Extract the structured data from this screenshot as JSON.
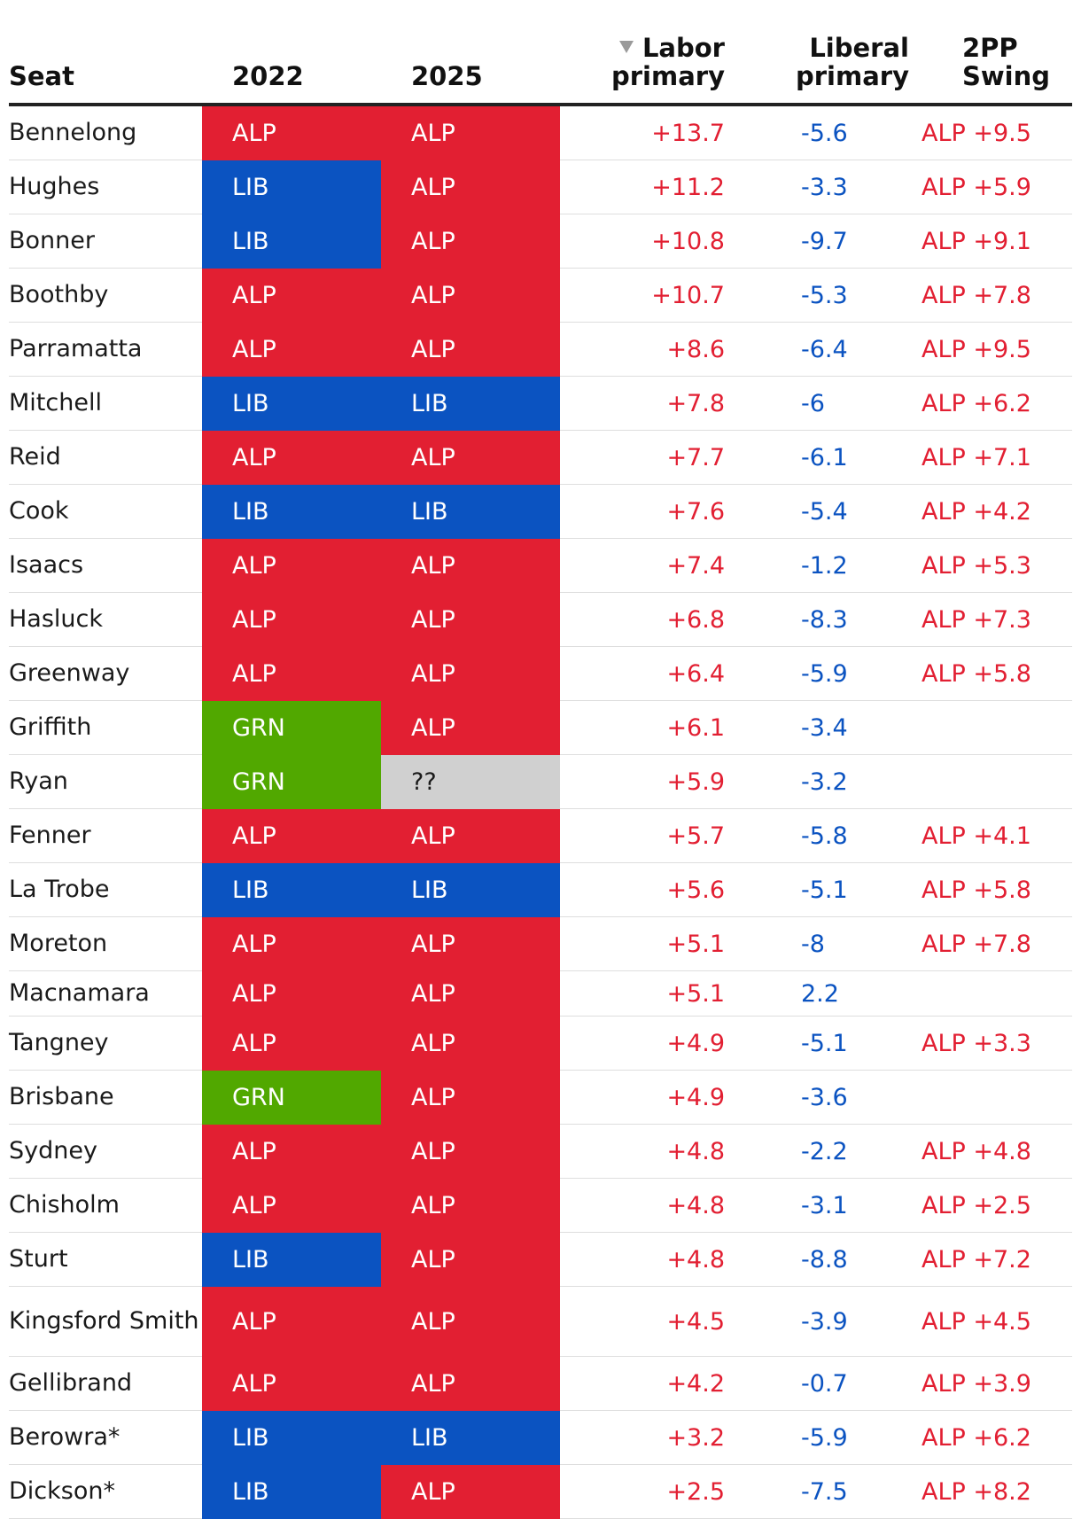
{
  "table": {
    "headers": {
      "seat": "Seat",
      "y2022": "2022",
      "y2025": "2025",
      "labor_line1": "Labor",
      "labor_line2": "primary",
      "liberal_line1": "Liberal",
      "liberal_line2": "primary",
      "swing_line1": "2PP",
      "swing_line2": "Swing"
    },
    "sorted_column": "Labor primary",
    "sort_direction": "descending",
    "colors": {
      "ALP": "#e21f32",
      "LIB": "#0b53c1",
      "GRN": "#51a800",
      "unknown": "#d0d0d0",
      "labor_text": "#e21f32",
      "liberal_text": "#0b53c1"
    },
    "rows": [
      {
        "seat": "Bennelong",
        "y2022": "ALP",
        "y2025": "ALP",
        "labor": "+13.7",
        "liberal": "-5.6",
        "swing": "ALP +9.5"
      },
      {
        "seat": "Hughes",
        "y2022": "LIB",
        "y2025": "ALP",
        "labor": "+11.2",
        "liberal": "-3.3",
        "swing": "ALP +5.9"
      },
      {
        "seat": "Bonner",
        "y2022": "LIB",
        "y2025": "ALP",
        "labor": "+10.8",
        "liberal": "-9.7",
        "swing": "ALP +9.1"
      },
      {
        "seat": "Boothby",
        "y2022": "ALP",
        "y2025": "ALP",
        "labor": "+10.7",
        "liberal": "-5.3",
        "swing": "ALP +7.8"
      },
      {
        "seat": "Parramatta",
        "y2022": "ALP",
        "y2025": "ALP",
        "labor": "+8.6",
        "liberal": "-6.4",
        "swing": "ALP +9.5"
      },
      {
        "seat": "Mitchell",
        "y2022": "LIB",
        "y2025": "LIB",
        "labor": "+7.8",
        "liberal": "-6",
        "swing": "ALP +6.2"
      },
      {
        "seat": "Reid",
        "y2022": "ALP",
        "y2025": "ALP",
        "labor": "+7.7",
        "liberal": "-6.1",
        "swing": "ALP +7.1"
      },
      {
        "seat": "Cook",
        "y2022": "LIB",
        "y2025": "LIB",
        "labor": "+7.6",
        "liberal": "-5.4",
        "swing": "ALP +4.2"
      },
      {
        "seat": "Isaacs",
        "y2022": "ALP",
        "y2025": "ALP",
        "labor": "+7.4",
        "liberal": "-1.2",
        "swing": "ALP +5.3"
      },
      {
        "seat": "Hasluck",
        "y2022": "ALP",
        "y2025": "ALP",
        "labor": "+6.8",
        "liberal": "-8.3",
        "swing": "ALP +7.3"
      },
      {
        "seat": "Greenway",
        "y2022": "ALP",
        "y2025": "ALP",
        "labor": "+6.4",
        "liberal": "-5.9",
        "swing": "ALP +5.8"
      },
      {
        "seat": "Griffith",
        "y2022": "GRN",
        "y2025": "ALP",
        "labor": "+6.1",
        "liberal": "-3.4",
        "swing": ""
      },
      {
        "seat": "Ryan",
        "y2022": "GRN",
        "y2025": "??",
        "labor": "+5.9",
        "liberal": "-3.2",
        "swing": ""
      },
      {
        "seat": "Fenner",
        "y2022": "ALP",
        "y2025": "ALP",
        "labor": "+5.7",
        "liberal": "-5.8",
        "swing": "ALP +4.1"
      },
      {
        "seat": "La Trobe",
        "y2022": "LIB",
        "y2025": "LIB",
        "labor": "+5.6",
        "liberal": "-5.1",
        "swing": "ALP +5.8"
      },
      {
        "seat": "Moreton",
        "y2022": "ALP",
        "y2025": "ALP",
        "labor": "+5.1",
        "liberal": "-8",
        "swing": "ALP +7.8"
      },
      {
        "seat": "Macnamara",
        "y2022": "ALP",
        "y2025": "ALP",
        "labor": "+5.1",
        "liberal": "2.2",
        "swing": ""
      },
      {
        "seat": "Tangney",
        "y2022": "ALP",
        "y2025": "ALP",
        "labor": "+4.9",
        "liberal": "-5.1",
        "swing": "ALP +3.3"
      },
      {
        "seat": "Brisbane",
        "y2022": "GRN",
        "y2025": "ALP",
        "labor": "+4.9",
        "liberal": "-3.6",
        "swing": ""
      },
      {
        "seat": "Sydney",
        "y2022": "ALP",
        "y2025": "ALP",
        "labor": "+4.8",
        "liberal": "-2.2",
        "swing": "ALP +4.8"
      },
      {
        "seat": "Chisholm",
        "y2022": "ALP",
        "y2025": "ALP",
        "labor": "+4.8",
        "liberal": "-3.1",
        "swing": "ALP +2.5"
      },
      {
        "seat": "Sturt",
        "y2022": "LIB",
        "y2025": "ALP",
        "labor": "+4.8",
        "liberal": "-8.8",
        "swing": "ALP +7.2"
      },
      {
        "seat": "Kingsford Smith",
        "y2022": "ALP",
        "y2025": "ALP",
        "labor": "+4.5",
        "liberal": "-3.9",
        "swing": "ALP +4.5"
      },
      {
        "seat": "Gellibrand",
        "y2022": "ALP",
        "y2025": "ALP",
        "labor": "+4.2",
        "liberal": "-0.7",
        "swing": "ALP +3.9"
      },
      {
        "seat": "Berowra*",
        "y2022": "LIB",
        "y2025": "LIB",
        "labor": "+3.2",
        "liberal": "-5.9",
        "swing": "ALP +6.2"
      },
      {
        "seat": "Dickson*",
        "y2022": "LIB",
        "y2025": "ALP",
        "labor": "+2.5",
        "liberal": "-7.5",
        "swing": "ALP +8.2"
      }
    ]
  }
}
